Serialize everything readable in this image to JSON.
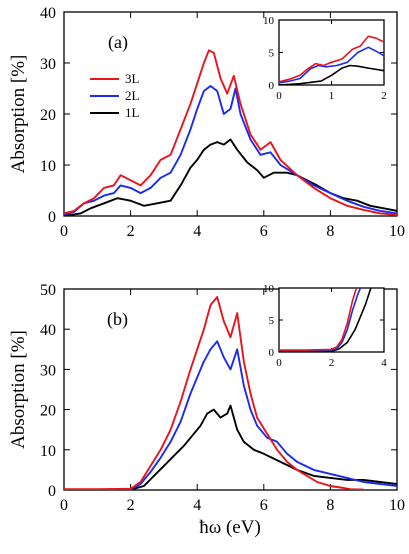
{
  "figure": {
    "xlabel": "ħω (eV)"
  },
  "chart_data": [
    {
      "type": "line",
      "panel_label": "(a)",
      "ylabel": "Absorption [%]",
      "xlim": [
        0,
        10
      ],
      "ylim": [
        0,
        40
      ],
      "xticks": [
        0,
        2,
        4,
        6,
        8,
        10
      ],
      "yticks": [
        0,
        10,
        20,
        30,
        40
      ],
      "legend": {
        "position": "left",
        "entries": [
          "3L",
          "2L",
          "1L"
        ]
      },
      "series": [
        {
          "name": "3L",
          "color": "#e8141c",
          "x": [
            0,
            0.3,
            0.6,
            0.9,
            1.2,
            1.5,
            1.7,
            2.0,
            2.3,
            2.6,
            2.9,
            3.2,
            3.5,
            3.8,
            4.0,
            4.2,
            4.35,
            4.5,
            4.7,
            4.9,
            5.1,
            5.3,
            5.6,
            5.9,
            6.2,
            6.5,
            7.0,
            7.5,
            8.0,
            8.5,
            9.0,
            9.5,
            10
          ],
          "y": [
            0.5,
            1.0,
            2.5,
            3.5,
            5.5,
            6.0,
            8.0,
            7.0,
            6.0,
            8.0,
            11.0,
            12.0,
            17.0,
            22.0,
            26.0,
            30.0,
            32.5,
            32.0,
            27.0,
            24.0,
            27.5,
            22.0,
            16.0,
            13.0,
            14.5,
            11.0,
            8.0,
            5.5,
            3.5,
            2.0,
            1.2,
            0.5,
            0.2
          ]
        },
        {
          "name": "2L",
          "color": "#1a2bf0",
          "x": [
            0,
            0.3,
            0.6,
            0.9,
            1.2,
            1.5,
            1.7,
            2.0,
            2.3,
            2.6,
            2.9,
            3.2,
            3.5,
            3.8,
            4.0,
            4.2,
            4.4,
            4.6,
            4.8,
            5.0,
            5.15,
            5.3,
            5.6,
            5.9,
            6.2,
            6.5,
            7.0,
            7.5,
            8.0,
            8.5,
            9.0,
            9.5,
            10
          ],
          "y": [
            0.3,
            0.8,
            2.5,
            3.0,
            4.0,
            4.5,
            6.0,
            5.5,
            4.5,
            5.5,
            7.5,
            8.5,
            12.0,
            17.0,
            21.0,
            24.5,
            25.5,
            24.5,
            20.0,
            21.0,
            25.0,
            20.0,
            15.0,
            12.0,
            12.5,
            10.0,
            8.0,
            6.0,
            4.5,
            3.0,
            1.8,
            1.0,
            0.5
          ]
        },
        {
          "name": "1L",
          "color": "#000000",
          "x": [
            0,
            0.5,
            0.8,
            1.2,
            1.6,
            2.0,
            2.4,
            2.8,
            3.2,
            3.5,
            3.8,
            4.0,
            4.2,
            4.4,
            4.6,
            4.8,
            5.0,
            5.2,
            5.5,
            5.8,
            6.0,
            6.3,
            6.7,
            7.0,
            7.3,
            7.6,
            8.0,
            8.4,
            8.8,
            9.2,
            9.6,
            10
          ],
          "y": [
            0.0,
            0.5,
            1.5,
            2.5,
            3.5,
            3.0,
            2.0,
            2.5,
            3.0,
            6.0,
            9.5,
            11.0,
            13.0,
            14.0,
            14.5,
            14.0,
            15.0,
            13.0,
            10.5,
            9.0,
            7.5,
            8.5,
            8.5,
            8.0,
            7.0,
            6.0,
            4.5,
            3.5,
            3.0,
            2.0,
            1.5,
            1.0
          ]
        }
      ],
      "inset": {
        "xlim": [
          0,
          2
        ],
        "ylim": [
          0,
          10
        ],
        "xticks": [
          0,
          1,
          2
        ],
        "yticks": [
          0,
          5,
          10
        ],
        "series": [
          {
            "name": "3L",
            "color": "#e8141c",
            "x": [
              0,
              0.2,
              0.4,
              0.55,
              0.7,
              0.85,
              1.0,
              1.2,
              1.4,
              1.55,
              1.7,
              1.85,
              2.0
            ],
            "y": [
              0.5,
              0.9,
              1.5,
              2.5,
              3.3,
              3.0,
              3.5,
              4.0,
              5.5,
              6.0,
              7.5,
              7.2,
              6.6
            ]
          },
          {
            "name": "2L",
            "color": "#1a2bf0",
            "x": [
              0,
              0.2,
              0.4,
              0.6,
              0.75,
              0.9,
              1.1,
              1.3,
              1.5,
              1.7,
              1.85,
              2.0
            ],
            "y": [
              0.3,
              0.6,
              1.0,
              2.5,
              3.0,
              2.8,
              3.0,
              3.5,
              5.0,
              5.8,
              5.2,
              4.5
            ]
          },
          {
            "name": "1L",
            "color": "#000000",
            "x": [
              0,
              0.4,
              0.8,
              1.0,
              1.2,
              1.35,
              1.5,
              1.7,
              2.0
            ],
            "y": [
              0.0,
              0.2,
              0.6,
              1.5,
              2.6,
              3.0,
              2.9,
              2.6,
              2.2
            ]
          }
        ]
      }
    },
    {
      "type": "line",
      "panel_label": "(b)",
      "ylabel": "Absorption [%]",
      "xlabel": "ħω (eV)",
      "xlim": [
        0,
        10
      ],
      "ylim": [
        0,
        50
      ],
      "xticks": [
        0,
        2,
        4,
        6,
        8,
        10
      ],
      "yticks": [
        0,
        10,
        20,
        30,
        40,
        50
      ],
      "series": [
        {
          "name": "3L",
          "color": "#e8141c",
          "x": [
            0,
            1.0,
            2.0,
            2.3,
            2.6,
            2.9,
            3.2,
            3.5,
            3.8,
            4.0,
            4.2,
            4.4,
            4.6,
            4.8,
            5.0,
            5.2,
            5.4,
            5.6,
            5.8,
            6.1,
            6.4,
            6.7,
            7.0,
            7.3,
            7.6,
            8.0,
            8.4,
            8.6,
            9.0
          ],
          "y": [
            0.2,
            0.2,
            0.3,
            2.0,
            6.0,
            10.0,
            15.0,
            22.0,
            30.0,
            35.0,
            40.0,
            46.0,
            48.0,
            42.0,
            38.0,
            44.0,
            32.0,
            24.0,
            18.0,
            14.0,
            10.0,
            7.0,
            5.0,
            3.5,
            2.0,
            1.0,
            0.5,
            0.2,
            0.1
          ]
        },
        {
          "name": "2L",
          "color": "#1a2bf0",
          "x": [
            0,
            1.0,
            2.0,
            2.3,
            2.6,
            2.9,
            3.2,
            3.5,
            3.8,
            4.0,
            4.2,
            4.4,
            4.6,
            4.8,
            5.0,
            5.2,
            5.4,
            5.6,
            5.8,
            6.1,
            6.4,
            6.7,
            7.0,
            7.5,
            8.0,
            8.5,
            9.0,
            9.5,
            10
          ],
          "y": [
            0.1,
            0.1,
            0.2,
            1.5,
            4.5,
            8.0,
            12.0,
            17.0,
            24.0,
            28.0,
            32.0,
            35.0,
            37.0,
            33.0,
            30.0,
            35.0,
            26.0,
            20.0,
            16.0,
            13.0,
            12.0,
            9.0,
            7.0,
            5.0,
            4.0,
            3.0,
            2.0,
            1.5,
            1.0
          ]
        },
        {
          "name": "1L",
          "color": "#000000",
          "x": [
            0,
            1.0,
            2.0,
            2.4,
            2.7,
            3.0,
            3.3,
            3.6,
            3.9,
            4.1,
            4.3,
            4.5,
            4.7,
            4.9,
            5.0,
            5.2,
            5.4,
            5.7,
            6.0,
            6.5,
            7.0,
            7.5,
            8.0,
            8.5,
            9.0,
            9.5,
            10
          ],
          "y": [
            0.0,
            0.0,
            0.1,
            1.0,
            3.5,
            6.0,
            8.5,
            11.0,
            14.0,
            16.0,
            19.0,
            20.0,
            18.0,
            19.0,
            21.0,
            15.0,
            12.0,
            10.0,
            9.0,
            7.0,
            5.0,
            3.5,
            3.0,
            2.5,
            2.5,
            2.0,
            1.5
          ]
        }
      ],
      "inset": {
        "xlim": [
          0,
          4
        ],
        "ylim": [
          0,
          10
        ],
        "xticks": [
          0,
          2,
          4
        ],
        "yticks": [
          0,
          5,
          10
        ],
        "series": [
          {
            "name": "3L",
            "color": "#e8141c",
            "x": [
              0,
              1.0,
              2.0,
              2.2,
              2.4,
              2.6,
              2.8,
              2.95
            ],
            "y": [
              0.3,
              0.3,
              0.4,
              0.8,
              2.0,
              4.5,
              8.0,
              10.0
            ]
          },
          {
            "name": "2L",
            "color": "#1a2bf0",
            "x": [
              0,
              1.0,
              2.0,
              2.2,
              2.4,
              2.6,
              2.8,
              3.0,
              3.1
            ],
            "y": [
              0.2,
              0.2,
              0.3,
              0.5,
              1.5,
              3.5,
              6.5,
              9.0,
              10.0
            ]
          },
          {
            "name": "1L",
            "color": "#000000",
            "x": [
              0,
              1.0,
              2.0,
              2.3,
              2.6,
              2.9,
              3.1,
              3.3,
              3.5
            ],
            "y": [
              0.0,
              0.0,
              0.1,
              0.5,
              1.5,
              3.5,
              5.5,
              7.5,
              10.0
            ]
          }
        ]
      }
    }
  ]
}
